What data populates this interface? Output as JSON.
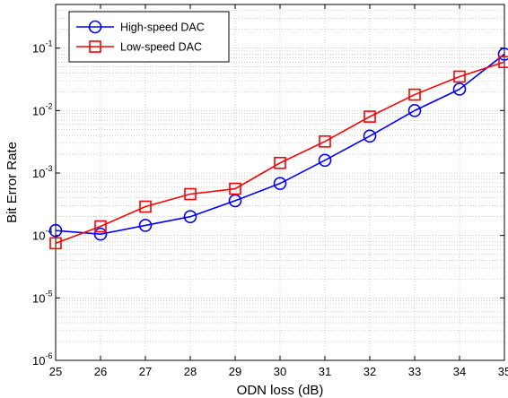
{
  "chart_data": {
    "type": "line",
    "xlabel": "ODN loss (dB)",
    "ylabel": "Bit Error Rate",
    "xlim": [
      25,
      35
    ],
    "ylim": [
      1e-06,
      0.5
    ],
    "yscale": "log",
    "grid": true,
    "legend_position": "top-left",
    "x": [
      25,
      26,
      27,
      28,
      29,
      30,
      31,
      32,
      33,
      34,
      35
    ],
    "x_tick_labels": [
      "25",
      "26",
      "27",
      "28",
      "29",
      "30",
      "31",
      "32",
      "33",
      "34",
      "35"
    ],
    "y_tick_labels": [
      {
        "value": 1e-06,
        "base": "10",
        "exp": "-6"
      },
      {
        "value": 1e-05,
        "base": "10",
        "exp": "-5"
      },
      {
        "value": 0.0001,
        "base": "10",
        "exp": "-4"
      },
      {
        "value": 0.001,
        "base": "10",
        "exp": "-3"
      },
      {
        "value": 0.01,
        "base": "10",
        "exp": "-2"
      },
      {
        "value": 0.1,
        "base": "10",
        "exp": "-1"
      }
    ],
    "series": [
      {
        "name": "High-speed DAC",
        "color": "#0000ff",
        "marker": "circle",
        "values": [
          0.00012,
          0.000105,
          0.000145,
          0.0002,
          0.00036,
          0.00068,
          0.0016,
          0.0039,
          0.01,
          0.022,
          0.08
        ]
      },
      {
        "name": "Low-speed DAC",
        "color": "#ff0000",
        "marker": "square",
        "values": [
          7.5e-05,
          0.00014,
          0.00029,
          0.00046,
          0.00056,
          0.00145,
          0.0032,
          0.008,
          0.018,
          0.035,
          0.06
        ]
      }
    ]
  }
}
